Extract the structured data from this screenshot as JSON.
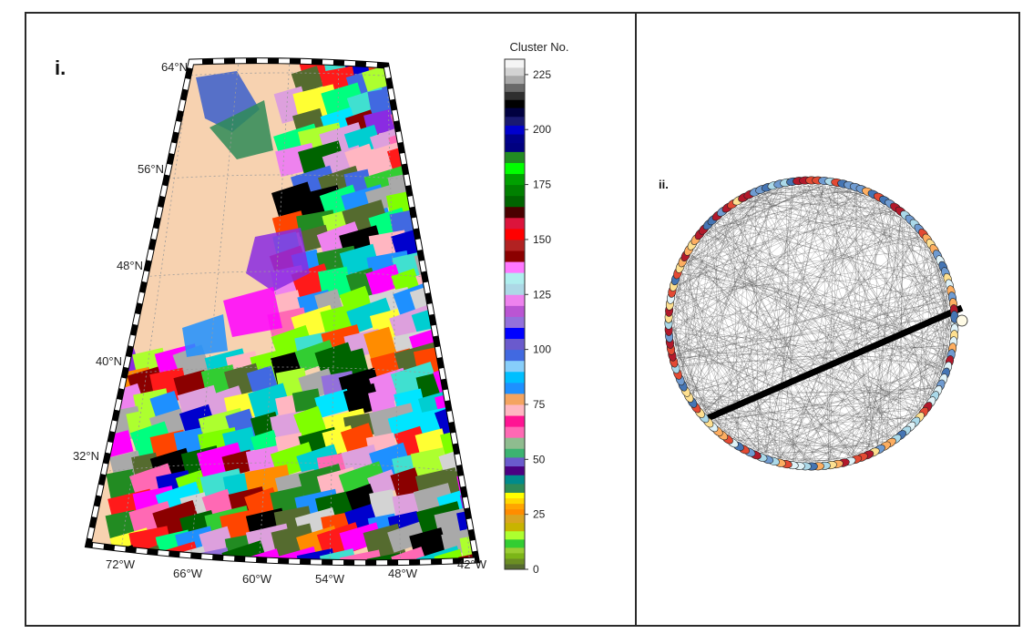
{
  "panel_i": {
    "label": "i.",
    "lat_labels": [
      "64°N",
      "56°N",
      "48°N",
      "40°N",
      "32°N"
    ],
    "lon_labels": [
      "72°W",
      "66°W",
      "60°W",
      "54°W",
      "48°W",
      "42°W"
    ],
    "land_color": "#f7d2b0",
    "colorbar": {
      "title": "Cluster No.",
      "ticks": [
        "225",
        "200",
        "175",
        "150",
        "125",
        "100",
        "75",
        "50",
        "25",
        "0"
      ],
      "range": [
        0,
        232
      ]
    }
  },
  "panel_ii": {
    "label": "ii.",
    "node_palette": [
      "#b2192b",
      "#e34a33",
      "#fdae61",
      "#fee090",
      "#e0f3f8",
      "#abd9e9",
      "#4575b4",
      "#6f9bd1"
    ]
  }
}
